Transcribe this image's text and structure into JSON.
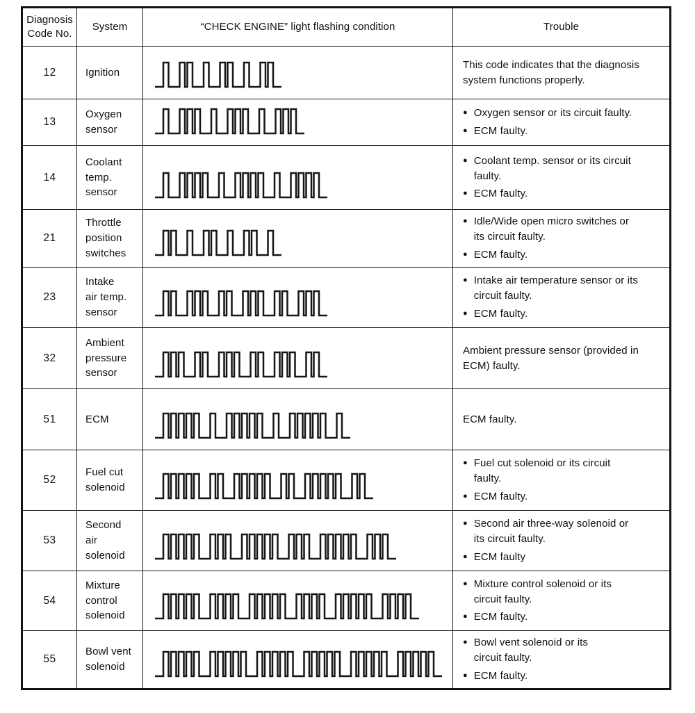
{
  "table": {
    "header": {
      "code": "Diagnosis\nCode No.",
      "system": "System",
      "flashing": "“CHECK ENGINE” light flashing condition",
      "trouble": "Trouble"
    },
    "waveform_legend": "pulse groups of the CHECK ENGINE lamp; pulse_pattern digits are flashed in sequence and repeated",
    "rows": [
      {
        "code": "12",
        "system": "Ignition",
        "pulse_pattern": [
          1,
          2
        ],
        "repeat": 3,
        "trouble": {
          "bulleted": false,
          "items": [
            "This code indicates that the diagnosis\nsystem functions properly."
          ]
        }
      },
      {
        "code": "13",
        "system": "Oxygen\nsensor",
        "pulse_pattern": [
          1,
          3
        ],
        "repeat": 3,
        "trouble": {
          "bulleted": true,
          "items": [
            "Oxygen sensor or its circuit faulty.",
            "ECM faulty."
          ]
        }
      },
      {
        "code": "14",
        "system": "Coolant\ntemp.\nsensor",
        "pulse_pattern": [
          1,
          4
        ],
        "repeat": 3,
        "trouble": {
          "bulleted": true,
          "items": [
            "Coolant temp. sensor or its circuit\nfaulty.",
            "ECM faulty."
          ]
        }
      },
      {
        "code": "21",
        "system": "Throttle\nposition\nswitches",
        "pulse_pattern": [
          2,
          1
        ],
        "repeat": 3,
        "trouble": {
          "bulleted": true,
          "items": [
            "Idle/Wide open micro switches or\nits circuit faulty.",
            "ECM faulty."
          ]
        }
      },
      {
        "code": "23",
        "system": "Intake\nair temp.\nsensor",
        "pulse_pattern": [
          2,
          3
        ],
        "repeat": 3,
        "trouble": {
          "bulleted": true,
          "items": [
            "Intake air temperature sensor or its\ncircuit faulty.",
            "ECM faulty."
          ]
        }
      },
      {
        "code": "32",
        "system": "Ambient\npressure\nsensor",
        "pulse_pattern": [
          3,
          2
        ],
        "repeat": 3,
        "trouble": {
          "bulleted": false,
          "items": [
            "Ambient pressure sensor (provided in\nECM) faulty."
          ]
        }
      },
      {
        "code": "51",
        "system": "ECM",
        "pulse_pattern": [
          5,
          1
        ],
        "repeat": 3,
        "trouble": {
          "bulleted": false,
          "items": [
            "ECM faulty."
          ]
        }
      },
      {
        "code": "52",
        "system": "Fuel cut\nsolenoid",
        "pulse_pattern": [
          5,
          2
        ],
        "repeat": 3,
        "trouble": {
          "bulleted": true,
          "items": [
            "Fuel cut solenoid or its circuit\nfaulty.",
            "ECM faulty."
          ]
        }
      },
      {
        "code": "53",
        "system": "Second\nair\nsolenoid",
        "pulse_pattern": [
          5,
          3
        ],
        "repeat": 3,
        "trouble": {
          "bulleted": true,
          "items": [
            "Second air three-way solenoid or\nits circuit faulty.",
            "ECM faulty"
          ]
        }
      },
      {
        "code": "54",
        "system": "Mixture\ncontrol\nsolenoid",
        "pulse_pattern": [
          5,
          4
        ],
        "repeat": 3,
        "trouble": {
          "bulleted": true,
          "items": [
            "Mixture control solenoid or its\ncircuit faulty.",
            "ECM faulty."
          ]
        }
      },
      {
        "code": "55",
        "system": "Bowl vent\nsolenoid",
        "pulse_pattern": [
          5,
          5
        ],
        "repeat": 3,
        "trouble": {
          "bulleted": true,
          "items": [
            "Bowl vent solenoid or its\ncircuit faulty.",
            "ECM faulty."
          ]
        }
      }
    ],
    "ink_color": "#161616"
  }
}
